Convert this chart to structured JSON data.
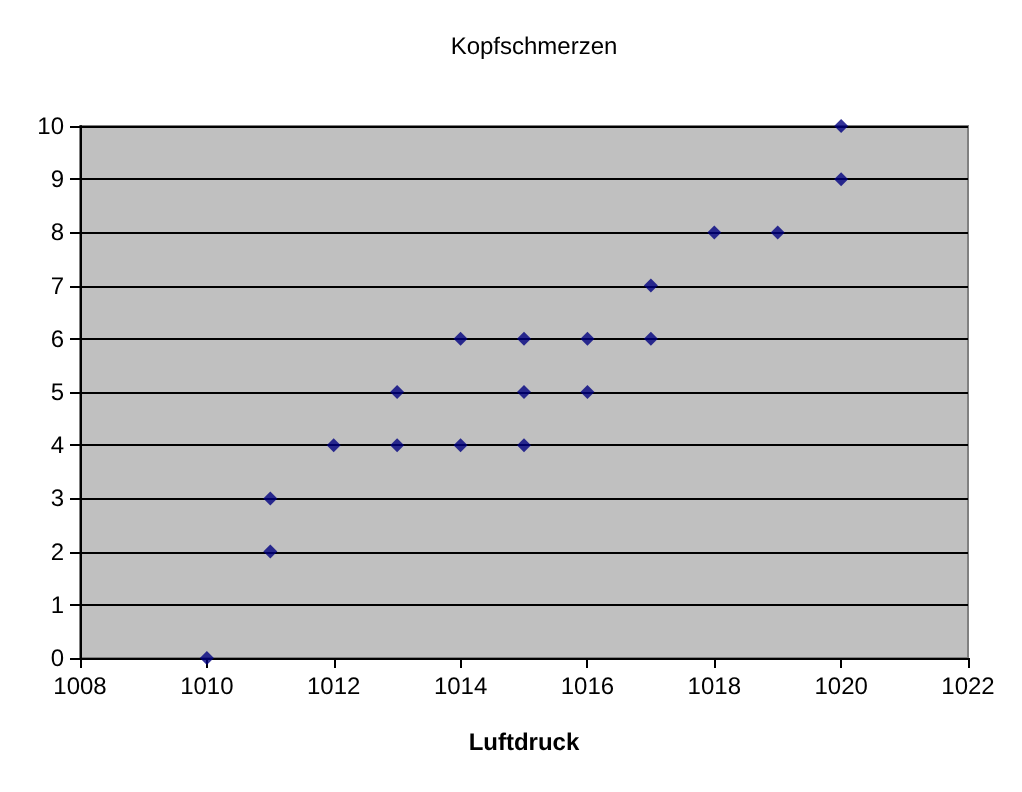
{
  "chart_data": {
    "type": "scatter",
    "title": "Kopfschmerzen",
    "xlabel": "Luftdruck",
    "x": [
      1010,
      1011,
      1011,
      1012,
      1013,
      1013,
      1014,
      1014,
      1015,
      1015,
      1015,
      1016,
      1016,
      1017,
      1017,
      1018,
      1019,
      1020,
      1020
    ],
    "series": [
      {
        "color": "#000080",
        "values": [
          0,
          2,
          3,
          4,
          4,
          5,
          4,
          6,
          4,
          5,
          6,
          5,
          6,
          6,
          7,
          8,
          8,
          9,
          10
        ]
      }
    ],
    "xlim": [
      1008,
      1022
    ],
    "xticks": [
      1008,
      1010,
      1012,
      1014,
      1016,
      1018,
      1020,
      1022
    ],
    "ylim": [
      0,
      10
    ],
    "yticks": [
      0,
      1,
      2,
      3,
      4,
      5,
      6,
      7,
      8,
      9,
      10
    ],
    "grid": "y",
    "marker": "diamond"
  }
}
